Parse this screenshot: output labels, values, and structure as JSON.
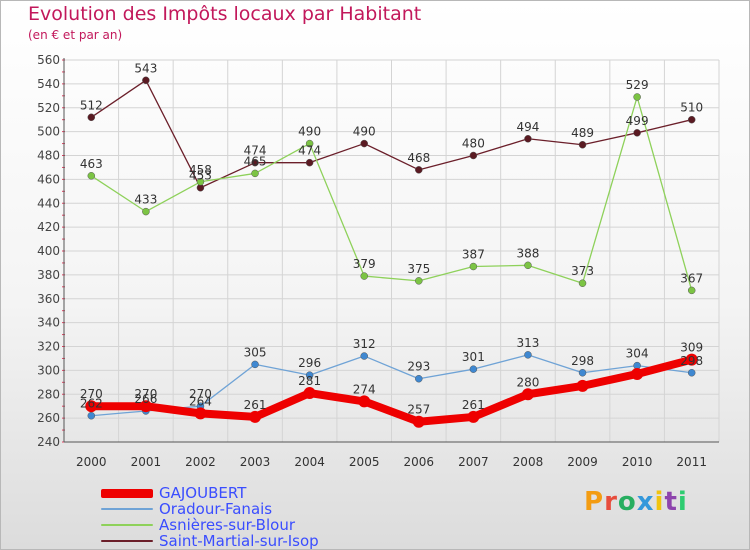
{
  "header": {
    "title": "Evolution des Impôts locaux par Habitant",
    "subtitle": "(en € et par an)"
  },
  "logo": {
    "text": "Proxiti",
    "letter_colors": [
      "#f39c12",
      "#e74c3c",
      "#27ae60",
      "#3498db",
      "#f1c40f",
      "#8e44ad",
      "#2ecc71"
    ]
  },
  "chart_data": {
    "type": "line",
    "x": [
      "2000",
      "2001",
      "2002",
      "2003",
      "2004",
      "2005",
      "2006",
      "2007",
      "2008",
      "2009",
      "2010",
      "2011"
    ],
    "ylim": [
      240,
      560
    ],
    "yticks": [
      240,
      260,
      280,
      300,
      320,
      340,
      360,
      380,
      400,
      420,
      440,
      460,
      480,
      500,
      520,
      540,
      560
    ],
    "grid": true,
    "legend_position": "bottom-left",
    "series": [
      {
        "name": "Saint-Martial-sur-Isop",
        "color": "#6b1f2a",
        "point_color": "#5a1a22",
        "width": 1.3,
        "marker_r": 3.5,
        "values": [
          512,
          543,
          453,
          474,
          474,
          490,
          468,
          480,
          494,
          489,
          499,
          510
        ],
        "labels": [
          "512",
          "543",
          "453",
          "474",
          "474",
          "490",
          "468",
          "480",
          "494",
          "489",
          "499",
          "510"
        ]
      },
      {
        "name": "Asnières-sur-Blour",
        "color": "#8ed15a",
        "point_color": "#7cc444",
        "width": 1.3,
        "marker_r": 3.5,
        "values": [
          463,
          433,
          458,
          465,
          490,
          379,
          375,
          387,
          388,
          373,
          529,
          367
        ],
        "labels": [
          "463",
          "433",
          "458",
          "465",
          "490",
          "379",
          "375",
          "387",
          "388",
          "373",
          "529",
          "367"
        ]
      },
      {
        "name": "Oradour-Fanais",
        "color": "#6fa3d6",
        "point_color": "#3f88d1",
        "width": 1.3,
        "marker_r": 3.5,
        "values": [
          262,
          266,
          270,
          305,
          296,
          312,
          293,
          301,
          313,
          298,
          304,
          298
        ],
        "labels": [
          "262",
          "266",
          "270",
          "305",
          "296",
          "312",
          "293",
          "301",
          "313",
          "298",
          "304",
          "298"
        ]
      },
      {
        "name": "GAJOUBERT",
        "color": "#ee0000",
        "point_color": "#ee0000",
        "width": 8,
        "marker_r": 6,
        "values": [
          270,
          270,
          264,
          261,
          281,
          274,
          257,
          261,
          280,
          287,
          297,
          309
        ],
        "labels": [
          "270",
          "270",
          "264",
          "261",
          "281",
          "274",
          "257",
          "261",
          "280",
          "",
          "",
          "309"
        ]
      }
    ],
    "legend_order": [
      "GAJOUBERT",
      "Oradour-Fanais",
      "Asnières-sur-Blour",
      "Saint-Martial-sur-Isop"
    ]
  }
}
